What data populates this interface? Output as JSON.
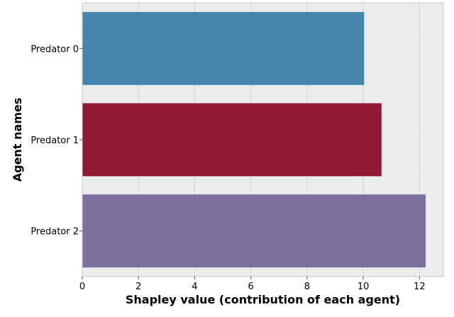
{
  "chart_data": {
    "type": "bar",
    "orientation": "horizontal",
    "title": "",
    "xlabel": "Shapley value (contribution of each agent)",
    "ylabel": "Agent names",
    "categories": [
      "Predator 0",
      "Predator 1",
      "Predator 2"
    ],
    "values": [
      10.03,
      10.65,
      12.22
    ],
    "colors": [
      "#4586ac",
      "#931a35",
      "#7d6f9e"
    ],
    "xlim": [
      0,
      12.85
    ],
    "xticks": [
      0,
      2,
      4,
      6,
      8,
      10,
      12
    ],
    "grid": true,
    "background": "#ececec",
    "grid_color": "#b0b0b0"
  }
}
